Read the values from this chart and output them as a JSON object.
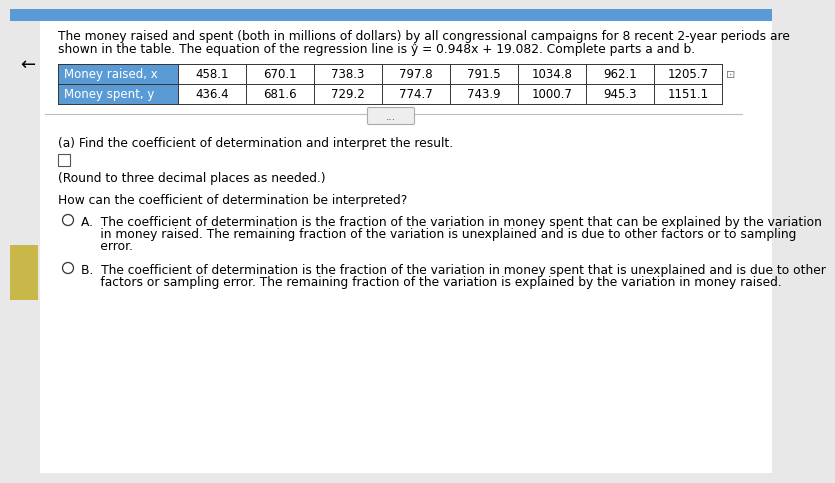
{
  "bg_color": "#e8e8e8",
  "content_bg": "#f5f5f5",
  "white_bg": "#ffffff",
  "top_bar_color": "#5b9bd5",
  "header_line1": "The money raised and spent (both in millions of dollars) by all congressional campaigns for 8 recent 2-year periods are",
  "header_line2": "shown in the table. The equation of the regression line is ŷ = 0.948x + 19.082. Complete parts a and b.",
  "table": {
    "row1_label": "Money raised, x",
    "row2_label": "Money spent, y",
    "row1_values": [
      "458.1",
      "670.1",
      "738.3",
      "797.8",
      "791.5",
      "1034.8",
      "962.1",
      "1205.7"
    ],
    "row2_values": [
      "436.4",
      "681.6",
      "729.2",
      "774.7",
      "743.9",
      "1000.7",
      "945.3",
      "1151.1"
    ],
    "header_bg": "#5b9bd5",
    "header_text_color": "#ffffff",
    "cell_bg": "#ffffff",
    "border_color": "#000000"
  },
  "part_a_text": "(a) Find the coefficient of determination and interpret the result.",
  "round_text": "(Round to three decimal places as needed.)",
  "how_text": "How can the coefficient of determination be interpreted?",
  "option_A_line1": "A.  The coefficient of determination is the fraction of the variation in money spent that can be explained by the variation",
  "option_A_line2": "     in money raised. The remaining fraction of the variation is unexplained and is due to other factors or to sampling",
  "option_A_line3": "     error.",
  "option_B_line1": "B.  The coefficient of determination is the fraction of the variation in money spent that is unexplained and is due to other",
  "option_B_line2": "     factors or sampling error. The remaining fraction of the variation is explained by the variation in money raised.",
  "dots_text": "...",
  "arrow_text": "←",
  "yellow_bar_color": "#c8b84a",
  "font_size_header": 8.8,
  "font_size_table": 8.5,
  "font_size_body": 8.8,
  "font_size_small": 8.8
}
